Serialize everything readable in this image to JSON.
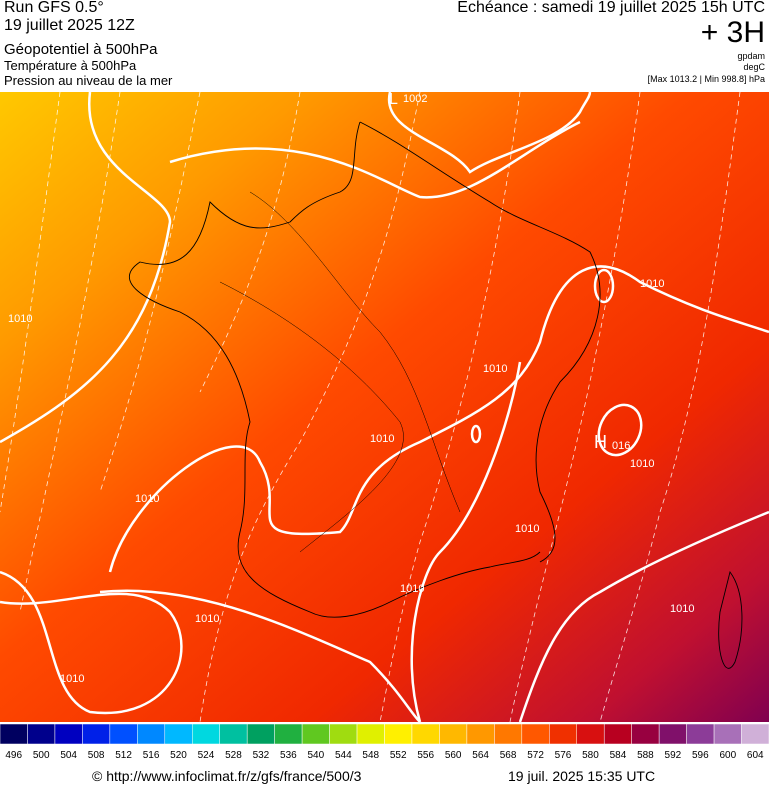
{
  "header": {
    "left": [
      "Run GFS 0.5°",
      "19 juillet 2025 12Z",
      "Géopotentiel à 500hPa",
      "Température à 500hPa",
      "Pression au niveau de la mer"
    ],
    "right": {
      "title": "Echéance : samedi 19 juillet 2025 15h UTC",
      "step": "+ 3H",
      "unit1": "gpdam",
      "unit2": "degC",
      "range": "[Max 1013.2 | Min 998.8] hPa"
    }
  },
  "map": {
    "labels": [
      "L",
      "1002",
      "H",
      "016",
      "1010",
      "1010",
      "1010",
      "1010",
      "1010",
      "1010",
      "1010",
      "1010",
      "1010",
      "1010",
      "1010"
    ]
  },
  "colorbar": {
    "labels": [
      496,
      500,
      504,
      508,
      512,
      516,
      520,
      524,
      528,
      532,
      536,
      540,
      544,
      548,
      552,
      556,
      560,
      564,
      568,
      572,
      576,
      580,
      584,
      588,
      592,
      596,
      600,
      604
    ],
    "colors": [
      "#000060",
      "#00008c",
      "#0000c0",
      "#0020e8",
      "#0050ff",
      "#0088ff",
      "#00b8ff",
      "#00d8e0",
      "#00c0a0",
      "#00a060",
      "#20b040",
      "#60c820",
      "#a0dc10",
      "#e0f000",
      "#fff000",
      "#ffd800",
      "#ffb800",
      "#ff9800",
      "#ff7800",
      "#ff5800",
      "#f03000",
      "#d81010",
      "#b80020",
      "#980040",
      "#80106a",
      "#8c3c98",
      "#a870b8",
      "#d0b0d8"
    ]
  },
  "footer": {
    "left": "© http://www.infoclimat.fr/z/gfs/france/500/3",
    "right": "19 juil. 2025 15:35 UTC"
  }
}
